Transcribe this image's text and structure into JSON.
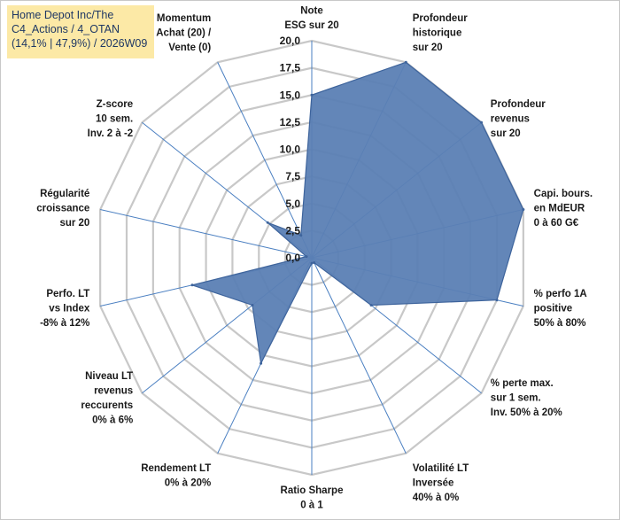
{
  "title": {
    "line1": "Home Depot Inc/The",
    "line2": "C4_Actions / 4_OTAN",
    "line3": "(14,1% | 47,9%) / 2026W09"
  },
  "colors": {
    "fill": "#5b7fb4",
    "stroke": "#3e649c",
    "grid": "#c8c8c8",
    "spoke": "#4a7fc1",
    "title_bg": "#fce9a6"
  },
  "chart_data": {
    "type": "radar",
    "range": [
      0,
      20
    ],
    "ticks": [
      "0,0",
      "2,5",
      "5,0",
      "7,5",
      "10,0",
      "12,5",
      "15,0",
      "17,5",
      "20,0"
    ],
    "axes": [
      {
        "label": [
          "Note",
          "ESG sur 20"
        ],
        "value": 15.0
      },
      {
        "label": [
          "Profondeur",
          "historique",
          "sur 20"
        ],
        "value": 20.0
      },
      {
        "label": [
          "Profondeur",
          "revenus",
          "sur 20"
        ],
        "value": 20.0
      },
      {
        "label": [
          "Capi. bours.",
          "en MdEUR",
          "0 à 60 G€"
        ],
        "value": 20.0
      },
      {
        "label": [
          "% perfo 1A",
          "positive",
          "50% à 80%"
        ],
        "value": 17.5
      },
      {
        "label": [
          "% perte max.",
          "sur 1 sem.",
          "Inv. 50% à 20%"
        ],
        "value": 7.0
      },
      {
        "label": [
          "Volatilité LT",
          "Inversée",
          "40% à 0%"
        ],
        "value": 0.5
      },
      {
        "label": [
          "Ratio Sharpe",
          "0 à 1"
        ],
        "value": 0.5
      },
      {
        "label": [
          "Rendement LT",
          "0% à 20%"
        ],
        "value": 10.8
      },
      {
        "label": [
          "Niveau LT",
          "revenus",
          "reccurents",
          "0% à 6%"
        ],
        "value": 7.0
      },
      {
        "label": [
          "Perfo. LT",
          "vs Index",
          "-8% à 12%"
        ],
        "value": 11.3
      },
      {
        "label": [
          "Régularité",
          "croissance",
          "sur 20"
        ],
        "value": 0.5
      },
      {
        "label": [
          "Z-score",
          "10 sem.",
          "Inv. 2 à -2"
        ],
        "value": 5.2
      },
      {
        "label": [
          "Momentum",
          "Achat (20) /",
          "Vente (0)"
        ],
        "value": 2.3
      }
    ]
  }
}
